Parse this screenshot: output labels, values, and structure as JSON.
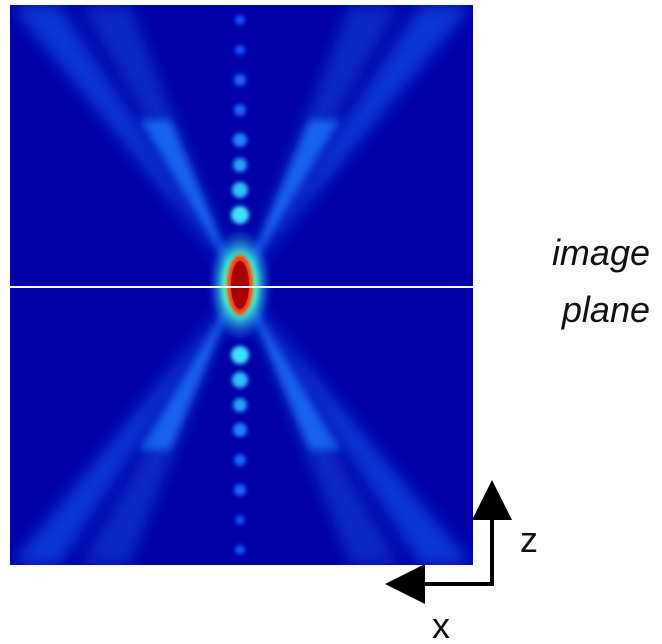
{
  "annotation": {
    "line1": "image",
    "line2": "plane"
  },
  "axes": {
    "z": "z",
    "x": "x"
  }
}
